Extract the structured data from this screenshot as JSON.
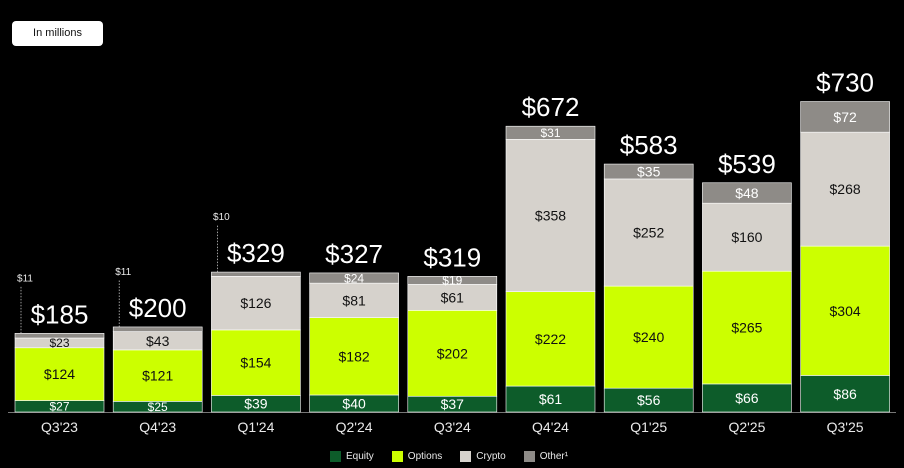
{
  "badge": {
    "label": "In millions"
  },
  "chart_data": {
    "type": "bar",
    "stacked": true,
    "title": "",
    "xlabel": "",
    "ylabel": "",
    "ylim": [
      0,
      730
    ],
    "categories": [
      "Q3'23",
      "Q4'23",
      "Q1'24",
      "Q2'24",
      "Q3'24",
      "Q4'24",
      "Q1'25",
      "Q2'25",
      "Q3'25"
    ],
    "totals": [
      "$185",
      "$200",
      "$329",
      "$327",
      "$319",
      "$672",
      "$583",
      "$539",
      "$730"
    ],
    "series": [
      {
        "name": "Equity",
        "color": "#0d5c2a",
        "values": [
          27,
          25,
          39,
          40,
          37,
          61,
          56,
          66,
          86
        ],
        "labels": [
          "$27",
          "$25",
          "$39",
          "$40",
          "$37",
          "$61",
          "$56",
          "$66",
          "$86"
        ]
      },
      {
        "name": "Options",
        "color": "#ccff00",
        "values": [
          124,
          121,
          154,
          182,
          202,
          222,
          240,
          265,
          304
        ],
        "labels": [
          "$124",
          "$121",
          "$154",
          "$182",
          "$202",
          "$222",
          "$240",
          "$265",
          "$304"
        ]
      },
      {
        "name": "Crypto",
        "color": "#d6d2cc",
        "values": [
          23,
          43,
          126,
          81,
          61,
          358,
          252,
          160,
          268
        ],
        "labels": [
          "$23",
          "$43",
          "$126",
          "$81",
          "$61",
          "$358",
          "$252",
          "$160",
          "$268"
        ]
      },
      {
        "name": "Other¹",
        "color": "#8e8b87",
        "values": [
          11,
          11,
          10,
          24,
          19,
          31,
          35,
          48,
          72
        ],
        "labels": [
          "$11",
          "$11",
          "$10",
          "$24",
          "$19",
          "$31",
          "$35",
          "$48",
          "$72"
        ]
      }
    ],
    "legend": "bottom-center"
  }
}
